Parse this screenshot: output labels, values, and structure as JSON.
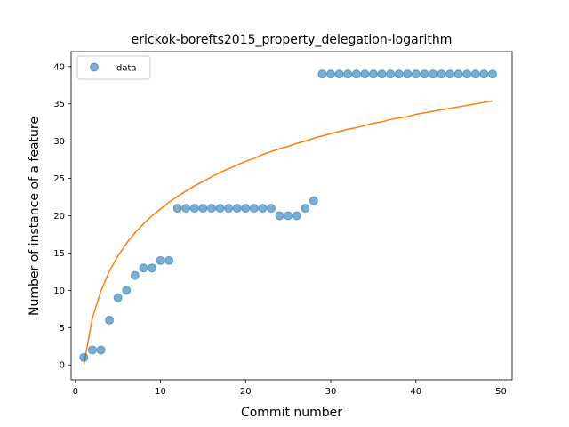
{
  "chart_data": {
    "type": "scatter",
    "title": "erickok-borefts2015_property_delegation-logarithm",
    "xlabel": "Commit number",
    "ylabel": "Number of instance of a feature",
    "xlim": [
      -0.5,
      51.3
    ],
    "ylim": [
      -2,
      42
    ],
    "xticks": [
      0,
      10,
      20,
      30,
      40,
      50
    ],
    "yticks": [
      0,
      5,
      10,
      15,
      20,
      25,
      30,
      35,
      40
    ],
    "grid": false,
    "legend_position": "upper left",
    "series": [
      {
        "name": "data",
        "kind": "scatter",
        "color": "#1f77b4",
        "x": [
          1,
          2,
          3,
          4,
          5,
          6,
          7,
          8,
          9,
          10,
          11,
          12,
          13,
          14,
          15,
          16,
          17,
          18,
          19,
          20,
          21,
          22,
          23,
          24,
          25,
          26,
          27,
          28,
          29,
          30,
          31,
          32,
          33,
          34,
          35,
          36,
          37,
          38,
          39,
          40,
          41,
          42,
          43,
          44,
          45,
          46,
          47,
          48,
          49
        ],
        "y": [
          1,
          2,
          2,
          6,
          9,
          10,
          12,
          13,
          13,
          14,
          14,
          21,
          21,
          21,
          21,
          21,
          21,
          21,
          21,
          21,
          21,
          21,
          21,
          20,
          20,
          20,
          21,
          22,
          39,
          39,
          39,
          39,
          39,
          39,
          39,
          39,
          39,
          39,
          39,
          39,
          39,
          39,
          39,
          39,
          39,
          39,
          39,
          39,
          39
        ]
      },
      {
        "kind": "line",
        "color": "#ff7f0e",
        "x": [
          1,
          2,
          3,
          4,
          5,
          6,
          7,
          8,
          9,
          10,
          11,
          12,
          13,
          14,
          15,
          16,
          17,
          18,
          19,
          20,
          21,
          22,
          23,
          24,
          25,
          26,
          27,
          28,
          29,
          30,
          31,
          32,
          33,
          34,
          35,
          36,
          37,
          38,
          39,
          40,
          41,
          42,
          43,
          44,
          45,
          46,
          47,
          48,
          49
        ],
        "y": [
          0.0,
          6.3,
          9.9,
          12.6,
          14.6,
          16.3,
          17.7,
          18.9,
          20.0,
          20.9,
          21.8,
          22.6,
          23.3,
          24.0,
          24.6,
          25.2,
          25.8,
          26.3,
          26.8,
          27.3,
          27.7,
          28.2,
          28.6,
          29.0,
          29.3,
          29.7,
          30.0,
          30.4,
          30.7,
          31.0,
          31.3,
          31.6,
          31.8,
          32.1,
          32.4,
          32.6,
          32.9,
          33.1,
          33.3,
          33.6,
          33.8,
          34.0,
          34.2,
          34.4,
          34.6,
          34.8,
          35.0,
          35.2,
          35.4
        ]
      }
    ]
  }
}
